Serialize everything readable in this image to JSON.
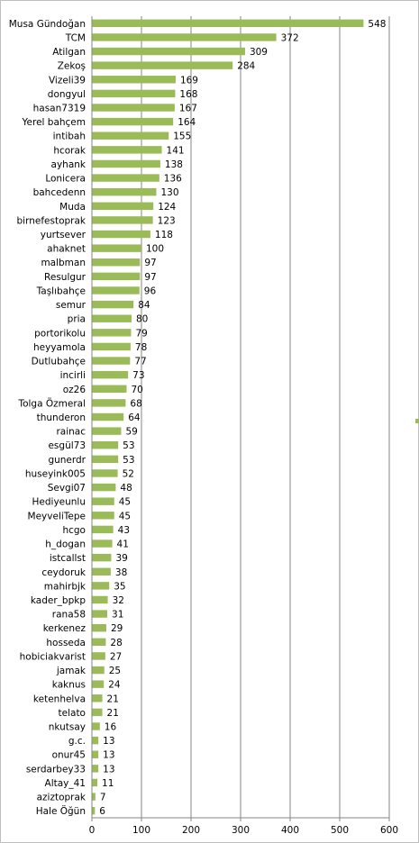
{
  "chart_data": {
    "type": "bar",
    "orientation": "horizontal",
    "categories": [
      "Musa Gündoğan",
      "TCM",
      "Atilgan",
      "Zekoş",
      "Vizeli39",
      "dongyul",
      "hasan7319",
      "Yerel bahçem",
      "intibah",
      "hcorak",
      "ayhank",
      "Lonicera",
      "bahcedenn",
      "Muda",
      "birnefestoprak",
      "yurtsever",
      "ahaknet",
      "malbman",
      "Resulgur",
      "Taşlıbahçe",
      "semur",
      "pria",
      "portorikolu",
      "heyyamola",
      "Dutlubahçe",
      "incirli",
      "oz26",
      "Tolga Özmeral",
      "thunderon",
      "rainac",
      "esgül73",
      "gunerdr",
      "huseyink005",
      "Sevgi07",
      "Hediyeunlu",
      "MeyveliTepe",
      "hcgo",
      "h_dogan",
      "istcallst",
      "ceydoruk",
      "mahirbjk",
      "kader_bpkp",
      "rana58",
      "kerkenez",
      "hosseda",
      "hobiciakvarist",
      "jamak",
      "kaknus",
      "ketenhelva",
      "telato",
      "nkutsay",
      "g.c.",
      "onur45",
      "serdarbey33",
      "Altay_41",
      "aziztoprak",
      "Hale Öğün"
    ],
    "values": [
      548,
      372,
      309,
      284,
      169,
      168,
      167,
      164,
      155,
      141,
      138,
      136,
      130,
      124,
      123,
      118,
      100,
      97,
      97,
      96,
      84,
      80,
      79,
      78,
      77,
      73,
      70,
      68,
      64,
      59,
      53,
      53,
      52,
      48,
      45,
      45,
      43,
      41,
      39,
      38,
      35,
      32,
      31,
      29,
      28,
      27,
      25,
      24,
      21,
      21,
      16,
      13,
      13,
      13,
      11,
      7,
      6
    ],
    "color": "#9bbb59",
    "xlim": [
      0,
      600
    ],
    "xticks": [
      0,
      100,
      200,
      300,
      400,
      500,
      600
    ],
    "grid": true
  }
}
